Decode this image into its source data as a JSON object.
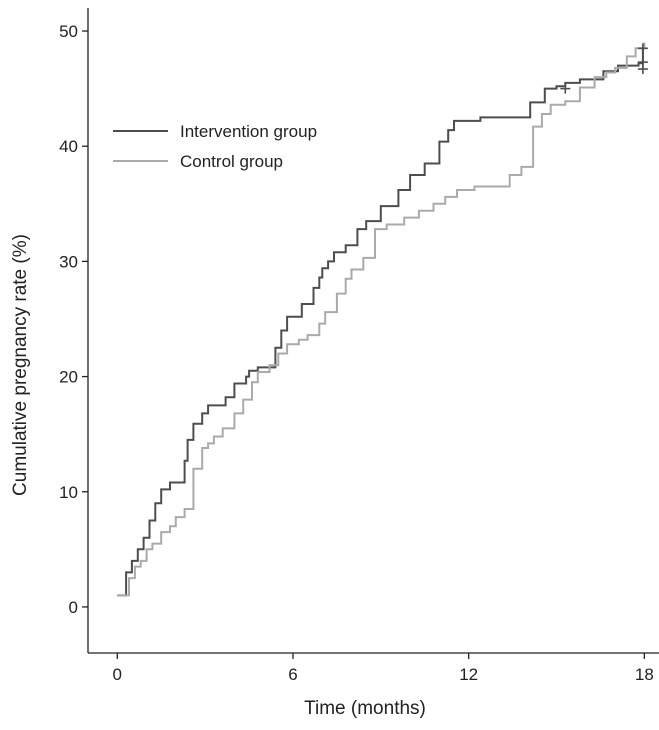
{
  "chart_data": {
    "type": "line",
    "title": "",
    "xlabel": "Time (months)",
    "ylabel": "Cumulative pregnancy rate (%)",
    "xlim": [
      -1,
      18.5
    ],
    "ylim": [
      -4,
      52
    ],
    "xticks": [
      0,
      6,
      12,
      18
    ],
    "yticks": [
      0,
      10,
      20,
      30,
      40,
      50
    ],
    "legend_position": "upper-left",
    "step": true,
    "series": [
      {
        "name": "Intervention group",
        "color": "#4d4d4d",
        "x": [
          0,
          0.3,
          0.5,
          0.7,
          0.9,
          1.1,
          1.3,
          1.5,
          1.8,
          2.3,
          2.4,
          2.6,
          2.9,
          3.1,
          3.7,
          4.0,
          4.4,
          4.5,
          4.8,
          5.4,
          5.6,
          5.8,
          6.3,
          6.7,
          6.9,
          7.0,
          7.2,
          7.4,
          7.8,
          8.2,
          8.5,
          9.0,
          9.6,
          10.0,
          10.5,
          11.0,
          11.3,
          11.5,
          12.4,
          13.0,
          14.1,
          14.6,
          15.0,
          15.3,
          15.8,
          16.6,
          17.1,
          17.6,
          17.8,
          17.95,
          18.0
        ],
        "y": [
          1.0,
          3.0,
          4.0,
          5.0,
          6.0,
          7.5,
          9.0,
          10.2,
          10.8,
          12.7,
          14.5,
          15.9,
          16.8,
          17.5,
          18.2,
          19.4,
          20.0,
          20.5,
          20.8,
          22.5,
          24.0,
          25.2,
          26.3,
          27.7,
          28.6,
          29.4,
          30.0,
          30.8,
          31.4,
          32.8,
          33.5,
          34.8,
          36.2,
          37.5,
          38.5,
          40.4,
          41.4,
          42.2,
          42.5,
          42.5,
          43.8,
          45.0,
          45.2,
          45.5,
          45.8,
          46.5,
          47.0,
          47.0,
          47.2,
          48.5,
          48.5
        ]
      },
      {
        "name": "Control group",
        "color": "#aaaaaa",
        "x": [
          0,
          0.4,
          0.6,
          0.8,
          1.0,
          1.2,
          1.5,
          1.8,
          2.0,
          2.3,
          2.6,
          2.9,
          3.1,
          3.3,
          3.6,
          4.0,
          4.3,
          4.6,
          4.8,
          5.2,
          5.5,
          5.8,
          6.2,
          6.5,
          6.9,
          7.1,
          7.5,
          7.8,
          8.0,
          8.4,
          8.8,
          9.2,
          9.8,
          10.3,
          10.8,
          11.2,
          11.6,
          12.2,
          13.4,
          13.8,
          14.2,
          14.5,
          14.8,
          15.3,
          15.8,
          16.3,
          16.7,
          17.0,
          17.4,
          17.7,
          18.0
        ],
        "y": [
          1.0,
          2.5,
          3.5,
          4.0,
          5.0,
          5.5,
          6.5,
          7.0,
          7.8,
          8.5,
          12.0,
          13.8,
          14.2,
          14.8,
          15.5,
          16.8,
          18.0,
          19.5,
          20.4,
          21.0,
          22.0,
          22.8,
          23.2,
          23.6,
          24.6,
          25.6,
          27.2,
          28.5,
          29.3,
          30.3,
          32.8,
          33.2,
          33.8,
          34.4,
          35.0,
          35.6,
          36.2,
          36.5,
          37.5,
          38.2,
          41.7,
          42.8,
          43.6,
          43.9,
          45.1,
          46.0,
          46.4,
          46.8,
          47.8,
          48.5,
          49.0
        ]
      }
    ]
  }
}
